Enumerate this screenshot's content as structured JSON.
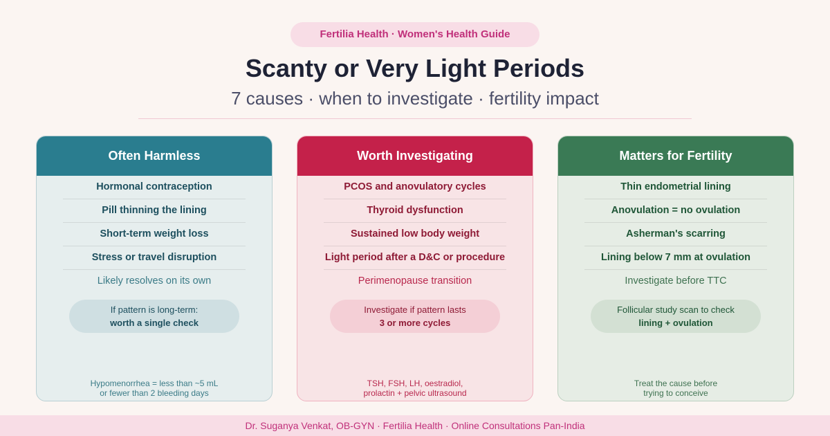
{
  "header": {
    "badge": "Fertilia Health · Women's Health Guide",
    "title": "Scanty or Very Light Periods",
    "subtitle": "7 causes · when to investigate · fertility impact"
  },
  "columns": [
    {
      "title": "Often Harmless",
      "items": [
        "Hormonal contraception",
        "Pill thinning the lining",
        "Short-term weight loss",
        "Stress or travel disruption"
      ],
      "last_item": "Likely resolves on its own",
      "note_line1": "If pattern is long-term:",
      "note_line2": "worth a single check",
      "foot_line1": "Hypomenorrhea = less than ~5 mL",
      "foot_line2": "or fewer than 2 bleeding days"
    },
    {
      "title": "Worth Investigating",
      "items": [
        "PCOS and anovulatory cycles",
        "Thyroid dysfunction",
        "Sustained low body weight",
        "Light period after a D&C or procedure"
      ],
      "last_item": "Perimenopause transition",
      "note_line1": "Investigate if pattern lasts",
      "note_line2": "3 or more cycles",
      "foot_line1": "TSH, FSH, LH, oestradiol,",
      "foot_line2": "prolactin + pelvic ultrasound"
    },
    {
      "title": "Matters for Fertility",
      "items": [
        "Thin endometrial lining",
        "Anovulation = no ovulation",
        "Asherman's scarring",
        "Lining below 7 mm at ovulation"
      ],
      "last_item": "Investigate before TTC",
      "note_line1": "Follicular study scan to check",
      "note_line2": "lining + ovulation",
      "foot_line1": "Treat the cause before",
      "foot_line2": "trying to conceive"
    }
  ],
  "footer": "Dr. Suganya Venkat, OB-GYN · Fertilia Health · Online Consultations Pan-India"
}
